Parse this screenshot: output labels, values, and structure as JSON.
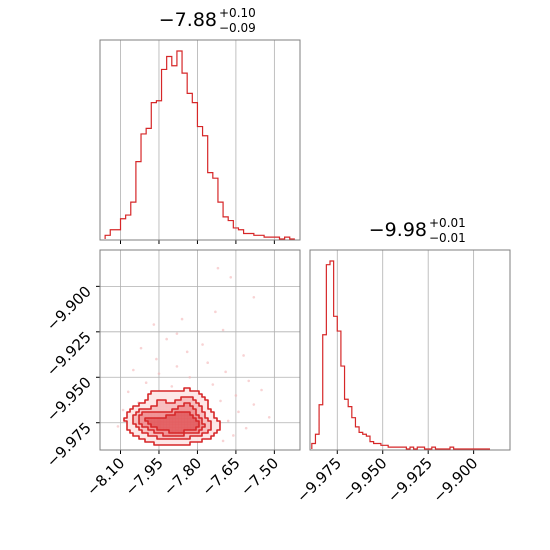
{
  "colors": {
    "series": "#d62728",
    "fill": "#f0a0a2",
    "scatter": "#f3b6b7",
    "grid": "#b0b0b0",
    "frame": "#7f7f7f"
  },
  "chart_data": [
    {
      "type": "histogram",
      "panel": "top-left",
      "parameter_axis": "x",
      "title": {
        "value": "−7.88",
        "upper": "+0.10",
        "lower": "−0.09"
      },
      "xlim": [
        -8.18,
        -7.4
      ],
      "xticks": [
        -8.1,
        -7.95,
        -7.8,
        -7.65,
        -7.5
      ],
      "bin_edges": [
        -8.16,
        -8.14,
        -8.12,
        -8.1,
        -8.08,
        -8.06,
        -8.04,
        -8.02,
        -8.0,
        -7.98,
        -7.96,
        -7.94,
        -7.92,
        -7.9,
        -7.88,
        -7.86,
        -7.84,
        -7.82,
        -7.8,
        -7.78,
        -7.76,
        -7.74,
        -7.72,
        -7.7,
        -7.68,
        -7.66,
        -7.64,
        -7.62,
        -7.6,
        -7.58,
        -7.56,
        -7.54,
        -7.52,
        -7.5,
        -7.48,
        -7.46,
        -7.44,
        -7.42
      ],
      "counts": [
        2,
        5,
        5,
        11,
        13,
        20,
        42,
        57,
        60,
        74,
        75,
        92,
        99,
        94,
        102,
        90,
        79,
        74,
        61,
        56,
        36,
        33,
        20,
        12,
        10,
        6,
        5,
        3,
        3,
        2,
        2,
        1,
        1,
        1,
        0,
        1,
        0
      ]
    },
    {
      "type": "histogram",
      "panel": "bottom-right",
      "parameter_axis": "x",
      "title": {
        "value": "−9.98",
        "upper": "+0.01",
        "lower": "−0.01"
      },
      "xlim": [
        -9.99,
        -9.88
      ],
      "xticks": [
        -9.975,
        -9.95,
        -9.925,
        -9.9
      ],
      "xtick_labels": [
        "−9.975",
        "−9.950",
        "−9.925",
        "−9.900"
      ],
      "bin_edges": [
        -9.989,
        -9.987,
        -9.985,
        -9.983,
        -9.981,
        -9.979,
        -9.977,
        -9.975,
        -9.973,
        -9.971,
        -9.969,
        -9.967,
        -9.965,
        -9.963,
        -9.961,
        -9.959,
        -9.957,
        -9.955,
        -9.953,
        -9.951,
        -9.949,
        -9.947,
        -9.945,
        -9.943,
        -9.941,
        -9.939,
        -9.937,
        -9.935,
        -9.933,
        -9.931,
        -9.929,
        -9.927,
        -9.925,
        -9.923,
        -9.921,
        -9.919,
        -9.917,
        -9.915,
        -9.913,
        -9.911,
        -9.909,
        -9.907,
        -9.905,
        -9.903,
        -9.901,
        -9.899,
        -9.897,
        -9.895,
        -9.893,
        -9.891
      ],
      "counts": [
        3,
        8,
        24,
        62,
        100,
        102,
        72,
        64,
        45,
        27,
        23,
        17,
        12,
        9,
        8,
        7,
        4,
        3,
        3,
        2,
        2,
        1,
        1,
        1,
        1,
        1,
        0,
        1,
        0,
        1,
        1,
        0,
        0,
        1,
        0,
        0,
        0,
        0,
        1,
        0,
        0,
        0,
        0,
        0,
        0,
        0,
        0,
        0,
        0
      ]
    },
    {
      "type": "scatter+contour",
      "panel": "bottom-left",
      "xlim": [
        -8.18,
        -7.4
      ],
      "ylim": [
        -9.99,
        -9.88
      ],
      "xticks": [
        -8.1,
        -7.95,
        -7.8,
        -7.65,
        -7.5
      ],
      "xtick_labels": [
        "−8.10",
        "−7.95",
        "−7.80",
        "−7.65",
        "−7.50"
      ],
      "yticks": [
        -9.975,
        -9.95,
        -9.925,
        -9.9
      ],
      "ytick_labels": [
        "−9.975",
        "−9.950",
        "−9.925",
        "−9.900"
      ],
      "points": [
        [
          -7.72,
          -9.89
        ],
        [
          -7.67,
          -9.895
        ],
        [
          -7.58,
          -9.906
        ],
        [
          -7.73,
          -9.914
        ],
        [
          -7.86,
          -9.918
        ],
        [
          -7.97,
          -9.921
        ],
        [
          -7.7,
          -9.924
        ],
        [
          -7.88,
          -9.926
        ],
        [
          -7.92,
          -9.929
        ],
        [
          -7.78,
          -9.932
        ],
        [
          -8.02,
          -9.934
        ],
        [
          -7.84,
          -9.936
        ],
        [
          -7.62,
          -9.938
        ],
        [
          -7.96,
          -9.94
        ],
        [
          -7.76,
          -9.942
        ],
        [
          -7.88,
          -9.944
        ],
        [
          -8.05,
          -9.946
        ],
        [
          -7.69,
          -9.947
        ],
        [
          -7.95,
          -9.948
        ],
        [
          -7.83,
          -9.95
        ],
        [
          -7.6,
          -9.952
        ],
        [
          -8.0,
          -9.953
        ],
        [
          -7.74,
          -9.954
        ],
        [
          -7.9,
          -9.955
        ],
        [
          -7.55,
          -9.957
        ],
        [
          -8.07,
          -9.958
        ],
        [
          -7.8,
          -9.959
        ],
        [
          -7.65,
          -9.96
        ],
        [
          -7.97,
          -9.961
        ],
        [
          -7.85,
          -9.962
        ],
        [
          -7.71,
          -9.963
        ],
        [
          -8.03,
          -9.964
        ],
        [
          -7.58,
          -9.965
        ],
        [
          -7.92,
          -9.966
        ],
        [
          -7.77,
          -9.967
        ],
        [
          -8.09,
          -9.968
        ],
        [
          -7.64,
          -9.969
        ],
        [
          -7.99,
          -9.97
        ],
        [
          -7.82,
          -9.971
        ],
        [
          -7.52,
          -9.972
        ],
        [
          -8.06,
          -9.973
        ],
        [
          -7.68,
          -9.974
        ],
        [
          -7.94,
          -9.975
        ],
        [
          -7.79,
          -9.976
        ],
        [
          -8.11,
          -9.977
        ],
        [
          -7.61,
          -9.978
        ],
        [
          -7.88,
          -9.979
        ],
        [
          -7.73,
          -9.98
        ],
        [
          -8.0,
          -9.981
        ],
        [
          -7.66,
          -9.982
        ],
        [
          -7.91,
          -9.983
        ],
        [
          -7.84,
          -9.984
        ],
        [
          -7.7,
          -9.985
        ],
        [
          -7.96,
          -9.986
        ]
      ],
      "density_blobs": [
        {
          "x": -7.91,
          "y": -9.976,
          "sx": 0.075,
          "sy": 0.0055,
          "w": 1.0
        },
        {
          "x": -7.84,
          "y": -9.967,
          "sx": 0.045,
          "sy": 0.006,
          "w": 0.55
        },
        {
          "x": -8.01,
          "y": -9.972,
          "sx": 0.035,
          "sy": 0.004,
          "w": 0.45
        },
        {
          "x": -7.8,
          "y": -9.977,
          "sx": 0.05,
          "sy": 0.004,
          "w": 0.4
        },
        {
          "x": -7.95,
          "y": -9.962,
          "sx": 0.03,
          "sy": 0.0035,
          "w": 0.3
        }
      ],
      "contour_levels": [
        0.12,
        0.35,
        0.6,
        0.82
      ],
      "grid": true
    }
  ]
}
